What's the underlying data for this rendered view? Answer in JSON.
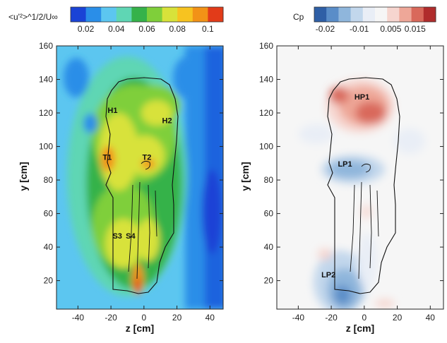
{
  "chart_data": [
    {
      "type": "heatmap",
      "colorbar_title": "<u'²>^1/2/U∞",
      "colorbar_ticks": [
        "0.02",
        "0.04",
        "0.06",
        "0.08",
        "0.1"
      ],
      "colorbar_colors": [
        "#1a43d6",
        "#2a8ee8",
        "#5cc6f0",
        "#5fd6b4",
        "#35b24a",
        "#7fcf3a",
        "#d8e23a",
        "#f7c320",
        "#f29217",
        "#e23b19"
      ],
      "xlabel": "z [cm]",
      "ylabel": "y [cm]",
      "xticks": [
        -40,
        -20,
        0,
        20,
        40
      ],
      "yticks": [
        20,
        40,
        60,
        80,
        100,
        120,
        140,
        160
      ],
      "xlim": [
        -53,
        48
      ],
      "ylim": [
        3,
        160
      ],
      "labels": [
        {
          "text": "H1",
          "z": -22,
          "y": 120
        },
        {
          "text": "H2",
          "z": 11,
          "y": 114
        },
        {
          "text": "T1",
          "z": -25,
          "y": 92
        },
        {
          "text": "T2",
          "z": -1,
          "y": 92
        },
        {
          "text": "S3",
          "z": -19,
          "y": 45
        },
        {
          "text": "S4",
          "z": -11,
          "y": 45
        }
      ]
    },
    {
      "type": "heatmap",
      "colorbar_title": "Cp",
      "colorbar_ticks": [
        "-0.02",
        "-0.01",
        "0.005",
        "0.015"
      ],
      "colorbar_colors": [
        "#2f5fa6",
        "#5a8dc8",
        "#8fb6dc",
        "#c2d7ec",
        "#e9eef6",
        "#f6f6f6",
        "#f6d5cf",
        "#eea798",
        "#d9695b",
        "#b02c2c"
      ],
      "xlabel": "z [cm]",
      "ylabel": "y [cm]",
      "xticks": [
        -40,
        -20,
        0,
        20,
        40
      ],
      "yticks": [
        20,
        40,
        60,
        80,
        100,
        120,
        140,
        160
      ],
      "xlim": [
        -53,
        48
      ],
      "ylim": [
        3,
        160
      ],
      "labels": [
        {
          "text": "HP1",
          "z": -6,
          "y": 128
        },
        {
          "text": "LP1",
          "z": -16,
          "y": 88
        },
        {
          "text": "LP2",
          "z": -26,
          "y": 22
        }
      ]
    }
  ]
}
